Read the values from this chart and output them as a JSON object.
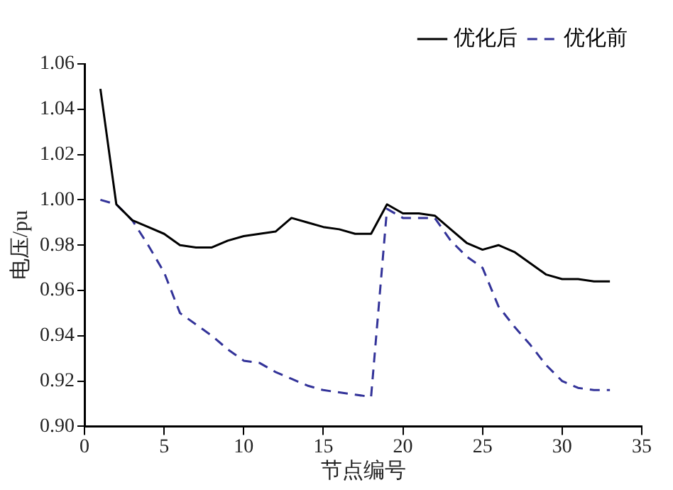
{
  "chart_data": {
    "type": "line",
    "xlabel": "节点编号",
    "ylabel": "电压/pu",
    "x": [
      1,
      2,
      3,
      4,
      5,
      6,
      7,
      8,
      9,
      10,
      11,
      12,
      13,
      14,
      15,
      16,
      17,
      18,
      19,
      20,
      21,
      22,
      23,
      24,
      25,
      26,
      27,
      28,
      29,
      30,
      31,
      32,
      33
    ],
    "series": [
      {
        "name": "优化后",
        "color": "#000000",
        "line_style": "solid",
        "values": [
          1.049,
          0.998,
          0.991,
          0.988,
          0.985,
          0.98,
          0.979,
          0.979,
          0.982,
          0.984,
          0.985,
          0.986,
          0.992,
          0.99,
          0.988,
          0.987,
          0.985,
          0.985,
          0.998,
          0.994,
          0.994,
          0.993,
          0.987,
          0.981,
          0.978,
          0.98,
          0.977,
          0.972,
          0.967,
          0.965,
          0.965,
          0.964,
          0.964
        ]
      },
      {
        "name": "优化前",
        "color": "#333399",
        "line_style": "dashed",
        "values": [
          1.0,
          0.998,
          0.991,
          0.98,
          0.968,
          0.95,
          0.945,
          0.94,
          0.934,
          0.929,
          0.928,
          0.924,
          0.921,
          0.918,
          0.916,
          0.915,
          0.914,
          0.913,
          0.996,
          0.992,
          0.992,
          0.992,
          0.982,
          0.975,
          0.97,
          0.953,
          0.944,
          0.936,
          0.927,
          0.92,
          0.917,
          0.916,
          0.916
        ]
      }
    ],
    "xlim": [
      0,
      35
    ],
    "xticks": [
      0,
      5,
      10,
      15,
      20,
      25,
      30,
      35
    ],
    "ylim": [
      0.9,
      1.06
    ],
    "yticks": [
      {
        "value": 0.9,
        "label": "0.90"
      },
      {
        "value": 0.92,
        "label": "0.92"
      },
      {
        "value": 0.94,
        "label": "0.94"
      },
      {
        "value": 0.96,
        "label": "0.96"
      },
      {
        "value": 0.98,
        "label": "0.98"
      },
      {
        "value": 1.0,
        "label": "1.00"
      },
      {
        "value": 1.02,
        "label": "1.02"
      },
      {
        "value": 1.04,
        "label": "1.04"
      },
      {
        "value": 1.06,
        "label": "1.06"
      }
    ],
    "grid": false,
    "legend": "top right"
  }
}
